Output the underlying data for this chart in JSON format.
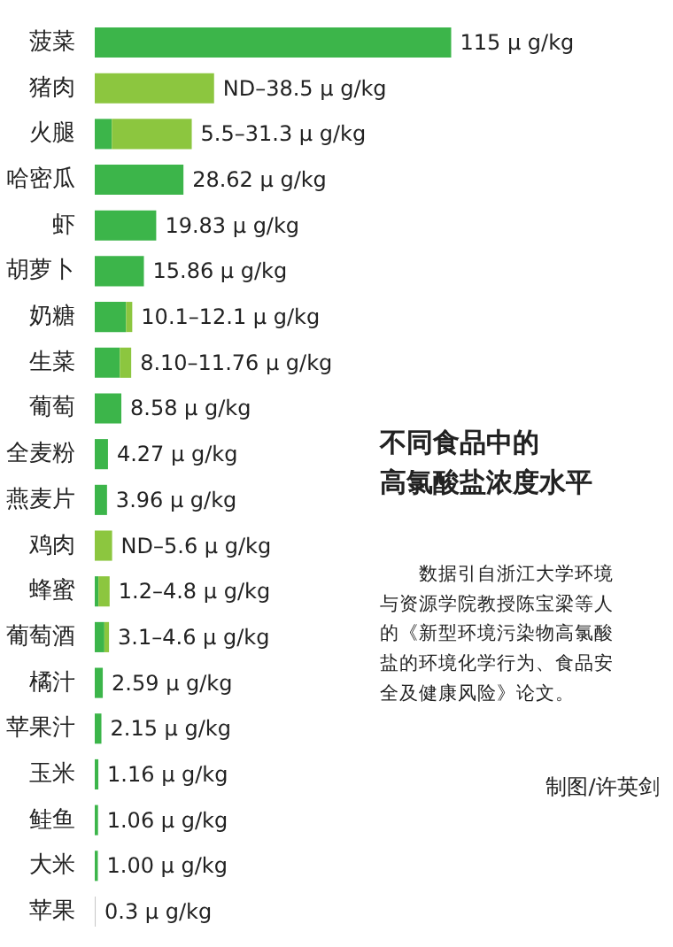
{
  "chart_data": {
    "type": "bar",
    "orientation": "horizontal",
    "stacked": true,
    "title": "不同食品中的高氯酸盐浓度水平",
    "annotations": [
      "数据引自浙江大学环境与资源学院教授陈宝梁等人的《新型环境污染物高氯酸盐的环境化学行为、食品安全及健康风险》论文。",
      "制图/许英剑"
    ],
    "categories": [
      "菠菜",
      "猪肉",
      "火腿",
      "哈密瓜",
      "虾",
      "胡萝卜",
      "奶糖",
      "生菜",
      "葡萄",
      "全麦粉",
      "燕麦片",
      "鸡肉",
      "蜂蜜",
      "葡萄酒",
      "橘汁",
      "苹果汁",
      "玉米",
      "鲑鱼",
      "大米",
      "苹果"
    ],
    "series": [
      {
        "colors": [
          "#3cb54a",
          "#3cb54a",
          "#3cb54a",
          "#3cb54a",
          "#3cb54a",
          "#3cb54a",
          "#3cb54a",
          "#3cb54a",
          "#3cb54a",
          "#3cb54a",
          "#3cb54a",
          "#3cb54a",
          "#3cb54a",
          "#3cb54a",
          "#3cb54a",
          "#3cb54a",
          "#3cb54a",
          "#3cb54a",
          "#3cb54a",
          "#c8c8c8"
        ],
        "values": [
          115,
          null,
          5.5,
          28.62,
          19.83,
          15.86,
          10.1,
          8.1,
          8.58,
          4.27,
          3.96,
          null,
          1.2,
          3.1,
          2.59,
          2.15,
          1.16,
          1.06,
          1.0,
          0.3
        ],
        "value_labels": [
          "115 μ g/kg",
          null,
          null,
          "28.62 μ g/kg",
          "19.83 μ g/kg",
          "15.86 μ g/kg",
          null,
          null,
          "8.58 μ g/kg",
          "4.27 μ g/kg",
          "3.96 μ g/kg",
          null,
          null,
          null,
          "2.59 μ g/kg",
          "2.15 μ g/kg",
          "1.16 μ g/kg",
          "1.06 μ g/kg",
          "1.00 μ g/kg",
          "0.3 μ g/kg"
        ]
      },
      {
        "color": "#8cc63f",
        "values": [
          null,
          38.5,
          25.8,
          null,
          null,
          null,
          2.0,
          3.66,
          null,
          null,
          null,
          5.6,
          3.6,
          1.5,
          null,
          null,
          null,
          null,
          null,
          null
        ],
        "value_labels": [
          null,
          "ND–38.5 μ g/kg",
          "5.5–31.3 μ g/kg",
          null,
          null,
          null,
          "10.1–12.1 μ g/kg",
          "8.10–11.76 μ g/kg",
          null,
          null,
          null,
          "ND–5.6 μ g/kg",
          "1.2–4.8 μ g/kg",
          "3.1–4.6 μ g/kg",
          null,
          null,
          null,
          null,
          null,
          null
        ]
      }
    ]
  }
}
